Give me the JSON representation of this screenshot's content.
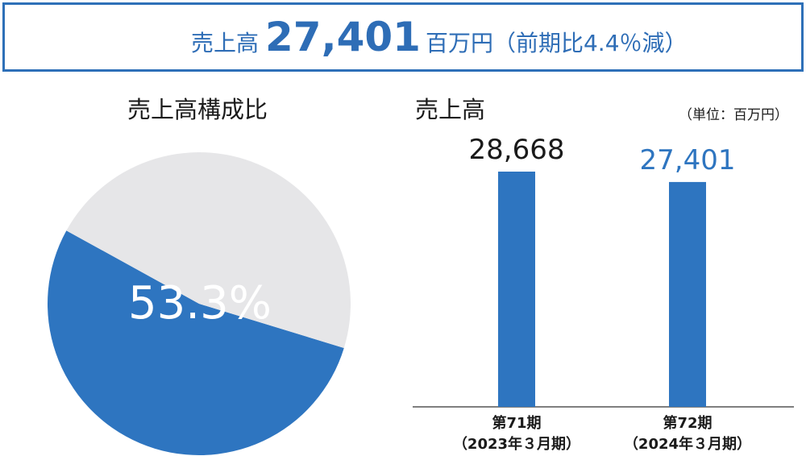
{
  "header": {
    "label": "売上高",
    "value": "27,401",
    "unit": "百万円",
    "change": "（前期比4.4％減）"
  },
  "chart_data": [
    {
      "type": "pie",
      "title": "売上高構成比",
      "values": [
        53.3,
        46.7
      ],
      "value_labels": [
        "53.3%",
        null
      ],
      "colors": [
        "#2e75c0",
        "#e6e6e8"
      ]
    },
    {
      "type": "bar",
      "title": "売上高",
      "unit_note": "（単位：百万円）",
      "categories": [
        [
          "第71期",
          "（2023年３月期）"
        ],
        [
          "第72期",
          "（2024年３月期）"
        ]
      ],
      "values": [
        28668,
        27401
      ],
      "value_labels": [
        "28,668",
        "27,401"
      ],
      "color": "#2e75c0",
      "label_colors": [
        "#1a1a1a",
        "#2e75c0"
      ]
    }
  ]
}
